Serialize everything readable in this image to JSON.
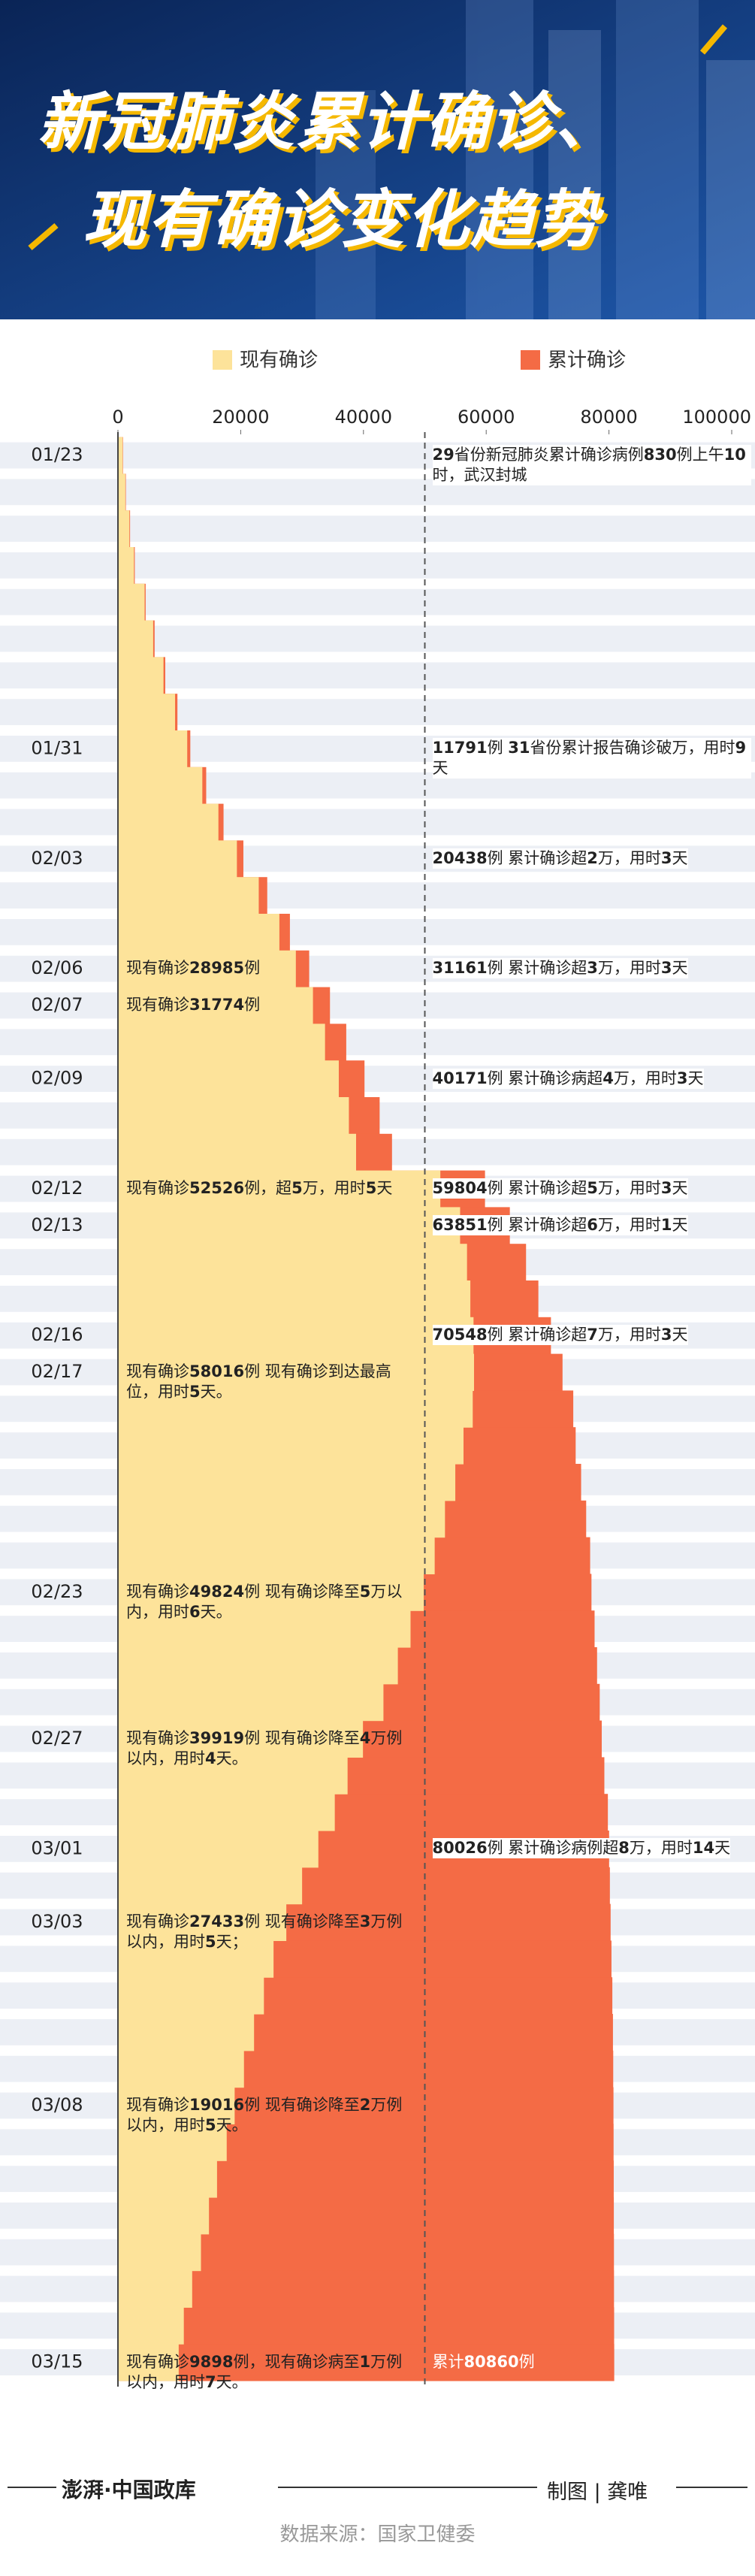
{
  "header": {
    "title_lines": [
      "新冠肺炎累计确诊、",
      "现有确诊变化趋势"
    ]
  },
  "chart_data": {
    "type": "bar",
    "orientation": "horizontal",
    "categories": [
      "01/23",
      null,
      null,
      null,
      null,
      null,
      null,
      null,
      "01/31",
      null,
      null,
      "02/03",
      null,
      null,
      "02/06",
      "02/07",
      null,
      "02/09",
      null,
      null,
      "02/12",
      "02/13",
      null,
      null,
      "02/16",
      "02/17",
      null,
      null,
      null,
      null,
      null,
      "02/23",
      null,
      null,
      null,
      "02/27",
      null,
      null,
      "03/01",
      null,
      "03/03",
      null,
      null,
      null,
      null,
      "03/08",
      null,
      null,
      null,
      null,
      null,
      null,
      "03/15"
    ],
    "series": [
      {
        "name": "现有确诊",
        "color": "#fde39a",
        "values": [
          771,
          1208,
          1870,
          2613,
          4349,
          5739,
          7417,
          9308,
          11289,
          13748,
          16369,
          19381,
          22942,
          26302,
          28985,
          31774,
          33738,
          35982,
          37626,
          38800,
          52526,
          55748,
          56873,
          57416,
          57934,
          58016,
          57805,
          56303,
          54965,
          53284,
          51606,
          49824,
          47672,
          45604,
          43258,
          39919,
          37414,
          35329,
          32652,
          30004,
          27433,
          25352,
          23784,
          22177,
          20533,
          19016,
          17721,
          16145,
          14831,
          13526,
          12094,
          10734,
          9898
        ]
      },
      {
        "name": "累计确诊",
        "color": "#f46b45",
        "values": [
          830,
          1287,
          1975,
          2744,
          4515,
          5974,
          7711,
          9692,
          11791,
          14380,
          17205,
          20438,
          24324,
          28018,
          31161,
          34546,
          37198,
          40171,
          42638,
          44653,
          59804,
          63851,
          66492,
          68500,
          70548,
          72436,
          74185,
          74576,
          75465,
          76288,
          76936,
          77150,
          77658,
          78064,
          78497,
          78824,
          79251,
          79824,
          80026,
          80151,
          80270,
          80409,
          80552,
          80651,
          80695,
          80735,
          80754,
          80778,
          80793,
          80813,
          80824,
          80844,
          80860
        ]
      }
    ],
    "xlim": [
      0,
      100000
    ],
    "xticks": [
      0,
      20000,
      40000,
      60000,
      80000,
      100000
    ],
    "reference_line": 50000,
    "annotations": [
      {
        "date": "01/23",
        "side": "right",
        "parts": [
          {
            "t": "29",
            "b": true
          },
          {
            "t": "省份新冠肺炎累计确诊病例"
          },
          {
            "t": "830",
            "b": true
          },
          {
            "t": "例上午"
          },
          {
            "t": "10",
            "b": true
          },
          {
            "t": "时，武汉封城"
          }
        ]
      },
      {
        "date": "01/31",
        "side": "right",
        "parts": [
          {
            "t": "11791",
            "b": true
          },
          {
            "t": "例 "
          },
          {
            "t": "31",
            "b": true
          },
          {
            "t": "省份累计报告确诊破万，用时"
          },
          {
            "t": "9",
            "b": true
          },
          {
            "t": "天"
          }
        ]
      },
      {
        "date": "02/03",
        "side": "right",
        "parts": [
          {
            "t": "20438",
            "b": true
          },
          {
            "t": "例 累计确诊超"
          },
          {
            "t": "2",
            "b": true
          },
          {
            "t": "万，用时"
          },
          {
            "t": "3",
            "b": true
          },
          {
            "t": "天"
          }
        ]
      },
      {
        "date": "02/06",
        "side": "right",
        "parts": [
          {
            "t": "31161",
            "b": true
          },
          {
            "t": "例 累计确诊超"
          },
          {
            "t": "3",
            "b": true
          },
          {
            "t": "万，用时"
          },
          {
            "t": "3",
            "b": true
          },
          {
            "t": "天"
          }
        ]
      },
      {
        "date": "02/09",
        "side": "right",
        "parts": [
          {
            "t": "40171",
            "b": true
          },
          {
            "t": "例 累计确诊病超"
          },
          {
            "t": "4",
            "b": true
          },
          {
            "t": "万，用时"
          },
          {
            "t": "3",
            "b": true
          },
          {
            "t": "天"
          }
        ]
      },
      {
        "date": "02/12",
        "side": "right",
        "parts": [
          {
            "t": "59804",
            "b": true
          },
          {
            "t": "例 累计确诊超"
          },
          {
            "t": "5",
            "b": true
          },
          {
            "t": "万，用时"
          },
          {
            "t": "3",
            "b": true
          },
          {
            "t": "天"
          }
        ]
      },
      {
        "date": "02/13",
        "side": "right",
        "parts": [
          {
            "t": "63851",
            "b": true
          },
          {
            "t": "例 累计确诊超"
          },
          {
            "t": "6",
            "b": true
          },
          {
            "t": "万，用时"
          },
          {
            "t": "1",
            "b": true
          },
          {
            "t": "天"
          }
        ]
      },
      {
        "date": "02/16",
        "side": "right",
        "parts": [
          {
            "t": "70548",
            "b": true
          },
          {
            "t": "例 累计确诊超"
          },
          {
            "t": "7",
            "b": true
          },
          {
            "t": "万，用时"
          },
          {
            "t": "3",
            "b": true
          },
          {
            "t": "天"
          }
        ]
      },
      {
        "date": "03/01",
        "side": "right",
        "parts": [
          {
            "t": "80026",
            "b": true
          },
          {
            "t": "例 累计确诊病例超"
          },
          {
            "t": "8",
            "b": true
          },
          {
            "t": "万，用时"
          },
          {
            "t": "14",
            "b": true
          },
          {
            "t": "天"
          }
        ]
      },
      {
        "date": "03/15",
        "side": "right",
        "text_color": "#ffffff",
        "parts": [
          {
            "t": "累计"
          },
          {
            "t": "80860",
            "b": true
          },
          {
            "t": "例"
          }
        ]
      },
      {
        "date": "02/06",
        "side": "left",
        "parts": [
          {
            "t": "现有确诊"
          },
          {
            "t": "28985",
            "b": true
          },
          {
            "t": "例"
          }
        ]
      },
      {
        "date": "02/07",
        "side": "left",
        "parts": [
          {
            "t": "现有确诊"
          },
          {
            "t": "31774",
            "b": true
          },
          {
            "t": "例"
          }
        ]
      },
      {
        "date": "02/12",
        "side": "left",
        "parts": [
          {
            "t": "现有确诊"
          },
          {
            "t": "52526",
            "b": true
          },
          {
            "t": "例，超"
          },
          {
            "t": "5",
            "b": true
          },
          {
            "t": "万，用时"
          },
          {
            "t": "5",
            "b": true
          },
          {
            "t": "天"
          }
        ]
      },
      {
        "date": "02/17",
        "side": "left",
        "parts": [
          {
            "t": "现有确诊"
          },
          {
            "t": "58016",
            "b": true
          },
          {
            "t": "例 现有确诊到达最高位，用时"
          },
          {
            "t": "5",
            "b": true
          },
          {
            "t": "天。"
          }
        ]
      },
      {
        "date": "02/23",
        "side": "left",
        "parts": [
          {
            "t": "现有确诊"
          },
          {
            "t": "49824",
            "b": true
          },
          {
            "t": "例 现有确诊降至"
          },
          {
            "t": "5",
            "b": true
          },
          {
            "t": "万以内，用时"
          },
          {
            "t": "6",
            "b": true
          },
          {
            "t": "天。"
          }
        ]
      },
      {
        "date": "02/27",
        "side": "left",
        "parts": [
          {
            "t": "现有确诊"
          },
          {
            "t": "39919",
            "b": true
          },
          {
            "t": "例 现有确诊降至"
          },
          {
            "t": "4",
            "b": true
          },
          {
            "t": "万例以内，用时"
          },
          {
            "t": "4",
            "b": true
          },
          {
            "t": "天。"
          }
        ]
      },
      {
        "date": "03/03",
        "side": "left",
        "parts": [
          {
            "t": "现有确诊"
          },
          {
            "t": "27433",
            "b": true
          },
          {
            "t": "例 现有确诊降至"
          },
          {
            "t": "3",
            "b": true
          },
          {
            "t": "万例以内，用时"
          },
          {
            "t": "5",
            "b": true
          },
          {
            "t": "天；"
          }
        ]
      },
      {
        "date": "03/08",
        "side": "left",
        "parts": [
          {
            "t": "现有确诊"
          },
          {
            "t": "19016",
            "b": true
          },
          {
            "t": "例 现有确诊降至"
          },
          {
            "t": "2",
            "b": true
          },
          {
            "t": "万例以内，用时"
          },
          {
            "t": "5",
            "b": true
          },
          {
            "t": "天。"
          }
        ]
      },
      {
        "date": "03/15",
        "side": "left",
        "parts": [
          {
            "t": "现有确诊"
          },
          {
            "t": "9898",
            "b": true
          },
          {
            "t": "例，现有确诊病至"
          },
          {
            "t": "1",
            "b": true
          },
          {
            "t": "万例以内，用时"
          },
          {
            "t": "7",
            "b": true
          },
          {
            "t": "天。"
          }
        ]
      }
    ]
  },
  "footer": {
    "logo": "澎湃·中国政库",
    "credit": "制图 | 龚唯",
    "source": "数据来源：国家卫健委"
  }
}
